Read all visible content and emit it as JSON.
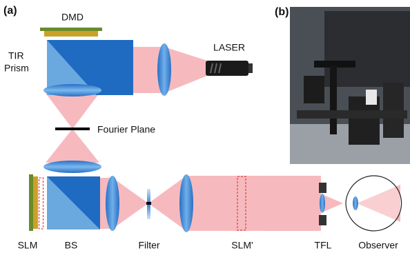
{
  "panels": {
    "a": "(a)",
    "b": "(b)"
  },
  "labels": {
    "dmd": "DMD",
    "tir_prism": [
      "TIR",
      "Prism"
    ],
    "laser": "LASER",
    "fourier_plane": "Fourier Plane",
    "slm": "SLM",
    "bs": "BS",
    "filter": "Filter",
    "slm_prime": "SLM'",
    "tfl": "TFL",
    "observer": "Observer"
  }
}
